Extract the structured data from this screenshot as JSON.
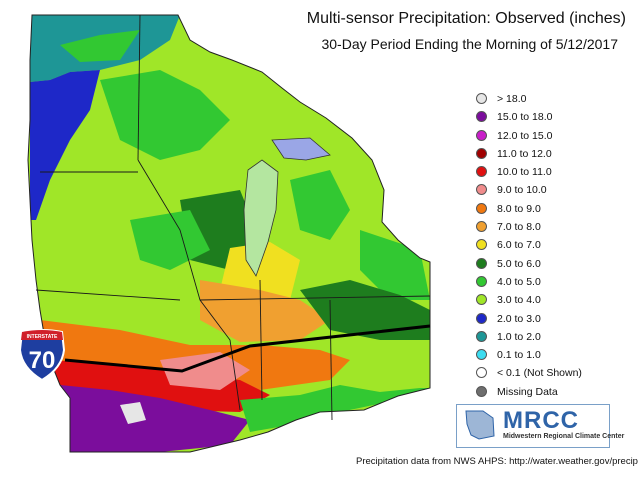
{
  "title": "Multi-sensor Precipitation:  Observed (inches)",
  "subtitle": "30-Day Period Ending the Morning of 5/12/2017",
  "legend": [
    {
      "label": "> 18.0",
      "color": "#e6e6e6"
    },
    {
      "label": "15.0 to 18.0",
      "color": "#7b0d9c"
    },
    {
      "label": "12.0 to 15.0",
      "color": "#c81ec8"
    },
    {
      "label": "11.0 to 12.0",
      "color": "#a00000"
    },
    {
      "label": "10.0 to 11.0",
      "color": "#e01010"
    },
    {
      "label": "9.0 to 10.0",
      "color": "#f08c8c"
    },
    {
      "label": "8.0 to 9.0",
      "color": "#f07810"
    },
    {
      "label": "7.0 to 8.0",
      "color": "#f0a030"
    },
    {
      "label": "6.0 to 7.0",
      "color": "#f0e020"
    },
    {
      "label": "5.0 to 6.0",
      "color": "#1e7d1e"
    },
    {
      "label": "4.0 to 5.0",
      "color": "#32c832"
    },
    {
      "label": "3.0 to 4.0",
      "color": "#a0e628"
    },
    {
      "label": "2.0 to 3.0",
      "color": "#1e28c8"
    },
    {
      "label": "1.0 to 2.0",
      "color": "#1e9696"
    },
    {
      "label": "0.1 to 1.0",
      "color": "#3cdcf0"
    },
    {
      "label": "< 0.1 (Not Shown)",
      "color": "#ffffff"
    },
    {
      "label": "Missing Data",
      "color": "#6e6e6e"
    }
  ],
  "interstate": {
    "top": "INTERSTATE",
    "number": "70"
  },
  "logo": {
    "name": "MRCC",
    "full_name": "Midwestern Regional Climate Center"
  },
  "footer": "Precipitation data from NWS AHPS: http://water.weather.gov/precip"
}
